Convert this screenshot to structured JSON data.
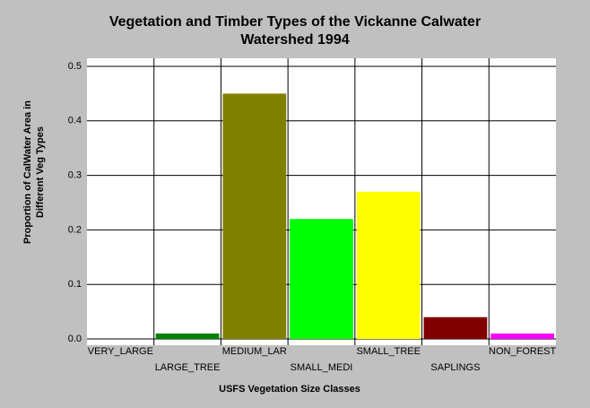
{
  "chart_data": {
    "type": "bar",
    "title": [
      "Vegetation and Timber Types of the Vickanne Calwater",
      "Watershed 1994"
    ],
    "x_label": "USFS Vegetation Size Classes",
    "y_label": [
      "Proportion of CalWater Area in",
      "Different Veg Types"
    ],
    "categories": [
      "VERY_LARGE",
      "LARGE_TREE",
      "MEDIUM_LAR",
      "SMALL_MEDI",
      "SMALL_TREE",
      "SAPLINGS",
      "NON_FOREST"
    ],
    "values": [
      0,
      0.01,
      0.45,
      0.22,
      0.27,
      0.04,
      0.01
    ],
    "colors": [
      "#000000",
      "#008000",
      "#808000",
      "#00ff00",
      "#ffff00",
      "#800000",
      "#ff00ff"
    ],
    "ylim": [
      0,
      0.5
    ],
    "yticks": [
      {
        "value": 0,
        "label": "0.0"
      },
      0.1,
      0.2,
      0.3,
      0.4,
      0.5
    ],
    "grid": true
  }
}
